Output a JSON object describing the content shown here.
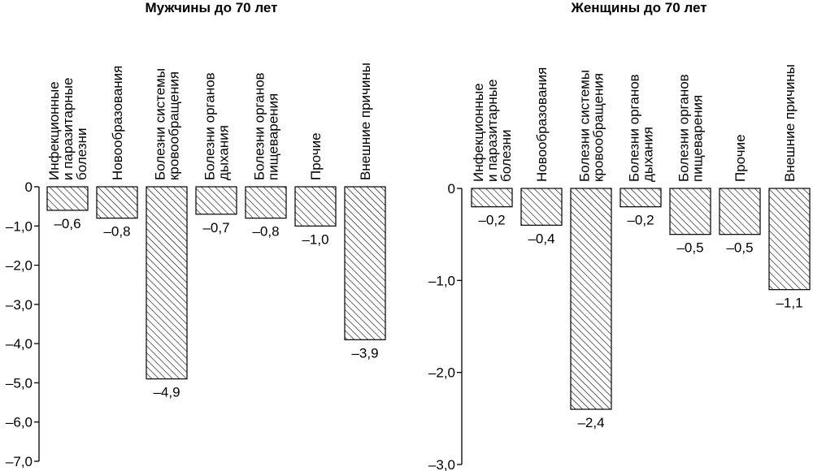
{
  "chart_data": [
    {
      "type": "bar",
      "title": "Мужчины до 70 лет",
      "xlabel": "",
      "ylabel": "",
      "categories": [
        [
          "Инфекционные",
          "и паразитарные",
          "болезни"
        ],
        [
          "Новообразования"
        ],
        [
          "Болезни системы",
          "кровообращения"
        ],
        [
          "Болезни органов",
          "дыхания"
        ],
        [
          "Болезни органов",
          "пищеварения"
        ],
        [
          "Прочие"
        ],
        [
          "Внешние причины"
        ]
      ],
      "values": [
        -0.6,
        -0.8,
        -4.9,
        -0.7,
        -0.8,
        -1.0,
        -3.9
      ],
      "value_labels": [
        "–0,6",
        "–0,8",
        "–4,9",
        "–0,7",
        "–0,8",
        "–1,0",
        "–3,9"
      ],
      "ylim": [
        -7.0,
        0
      ],
      "yticks": [
        0,
        -1.0,
        -2.0,
        -3.0,
        -4.0,
        -5.0,
        -6.0,
        -7.0
      ],
      "ytick_labels": [
        "0",
        "–1,0",
        "–2,0",
        "–3,0",
        "–4,0",
        "–5,0",
        "–6,0",
        "–7,0"
      ],
      "bar_fill": "hatched",
      "grid": false
    },
    {
      "type": "bar",
      "title": "Женщины до 70 лет",
      "xlabel": "",
      "ylabel": "",
      "categories": [
        [
          "Инфекционные",
          "и паразитарные",
          "болезни"
        ],
        [
          "Новообразования"
        ],
        [
          "Болезни системы",
          "кровообращения"
        ],
        [
          "Болезни органов",
          "дыхания"
        ],
        [
          "Болезни органов",
          "пищеварения"
        ],
        [
          "Прочие"
        ],
        [
          "Внешние причины"
        ]
      ],
      "values": [
        -0.2,
        -0.4,
        -2.4,
        -0.2,
        -0.5,
        -0.5,
        -1.1
      ],
      "value_labels": [
        "–0,2",
        "–0,4",
        "–2,4",
        "–0,2",
        "–0,5",
        "–0,5",
        "–1,1"
      ],
      "ylim": [
        -3.0,
        0
      ],
      "yticks": [
        0,
        -1.0,
        -2.0,
        -3.0
      ],
      "ytick_labels": [
        "0",
        "–1,0",
        "–2,0",
        "–3,0"
      ],
      "bar_fill": "hatched",
      "grid": false
    }
  ]
}
